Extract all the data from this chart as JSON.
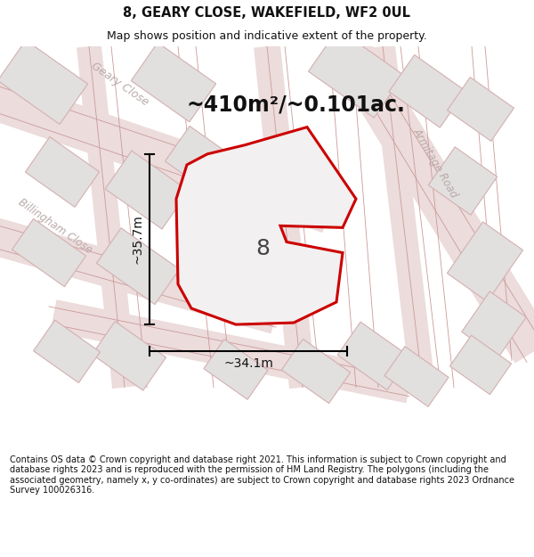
{
  "title": "8, GEARY CLOSE, WAKEFIELD, WF2 0UL",
  "subtitle": "Map shows position and indicative extent of the property.",
  "footer": "Contains OS data © Crown copyright and database right 2021. This information is subject to Crown copyright and database rights 2023 and is reproduced with the permission of HM Land Registry. The polygons (including the associated geometry, namely x, y co-ordinates) are subject to Crown copyright and database rights 2023 Ordnance Survey 100026316.",
  "area_label": "~410m²/~0.101ac.",
  "width_label": "~34.1m",
  "height_label": "~35.7m",
  "plot_number": "8",
  "map_bg": "#f2f0f0",
  "block_fc": "#e2dfdf",
  "block_ec": "#d4b0b0",
  "road_fc": "#ecdcdc",
  "plot_ec": "#cc0000",
  "plot_fc": "#f2f0f0",
  "street_color": "#bbaaaa",
  "title_fontsize": 10.5,
  "subtitle_fontsize": 9,
  "footer_fontsize": 7.0,
  "area_fontsize": 17,
  "measure_fontsize": 10,
  "plot_num_fontsize": 18
}
